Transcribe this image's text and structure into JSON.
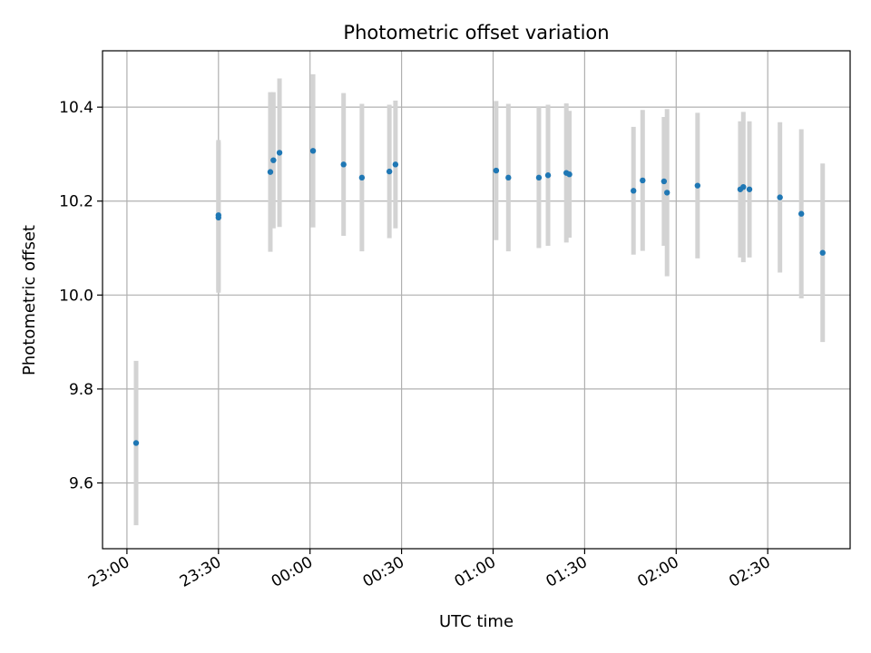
{
  "chart_data": {
    "type": "scatter",
    "title": "Photometric offset variation",
    "xlabel": "UTC time",
    "ylabel": "Photometric offset",
    "x_ticks": [
      "23:00",
      "23:30",
      "00:00",
      "00:30",
      "01:00",
      "01:30",
      "02:00",
      "02:30"
    ],
    "y_ticks": [
      "9.6",
      "9.8",
      "10.0",
      "10.2",
      "10.4"
    ],
    "xlim": [
      "22:52",
      "02:57"
    ],
    "ylim": [
      9.46,
      10.52
    ],
    "grid": true,
    "series": [
      {
        "marker_color": "#1f77b4",
        "errorbar_color": "#d3d3d3",
        "points": [
          {
            "t": "23:03",
            "y": 9.685,
            "err": 0.175
          },
          {
            "t": "23:30",
            "y": 10.17,
            "err": 0.16
          },
          {
            "t": "23:30",
            "y": 10.165,
            "err": 0.16
          },
          {
            "t": "23:47",
            "y": 10.262,
            "err": 0.17
          },
          {
            "t": "23:48",
            "y": 10.287,
            "err": 0.145
          },
          {
            "t": "23:50",
            "y": 10.303,
            "err": 0.158
          },
          {
            "t": "00:01",
            "y": 10.307,
            "err": 0.163
          },
          {
            "t": "00:11",
            "y": 10.278,
            "err": 0.152
          },
          {
            "t": "00:17",
            "y": 10.25,
            "err": 0.157
          },
          {
            "t": "00:26",
            "y": 10.263,
            "err": 0.142
          },
          {
            "t": "00:28",
            "y": 10.278,
            "err": 0.136
          },
          {
            "t": "01:01",
            "y": 10.265,
            "err": 0.148
          },
          {
            "t": "01:05",
            "y": 10.25,
            "err": 0.157
          },
          {
            "t": "01:15",
            "y": 10.25,
            "err": 0.15
          },
          {
            "t": "01:18",
            "y": 10.255,
            "err": 0.15
          },
          {
            "t": "01:24",
            "y": 10.26,
            "err": 0.148
          },
          {
            "t": "01:25",
            "y": 10.257,
            "err": 0.135
          },
          {
            "t": "01:46",
            "y": 10.222,
            "err": 0.136
          },
          {
            "t": "01:49",
            "y": 10.244,
            "err": 0.15
          },
          {
            "t": "01:56",
            "y": 10.242,
            "err": 0.137
          },
          {
            "t": "01:57",
            "y": 10.218,
            "err": 0.178
          },
          {
            "t": "02:07",
            "y": 10.233,
            "err": 0.155
          },
          {
            "t": "02:21",
            "y": 10.225,
            "err": 0.145
          },
          {
            "t": "02:22",
            "y": 10.23,
            "err": 0.16
          },
          {
            "t": "02:24",
            "y": 10.225,
            "err": 0.145
          },
          {
            "t": "02:34",
            "y": 10.208,
            "err": 0.16
          },
          {
            "t": "02:41",
            "y": 10.173,
            "err": 0.18
          },
          {
            "t": "02:48",
            "y": 10.09,
            "err": 0.19
          }
        ]
      }
    ]
  }
}
